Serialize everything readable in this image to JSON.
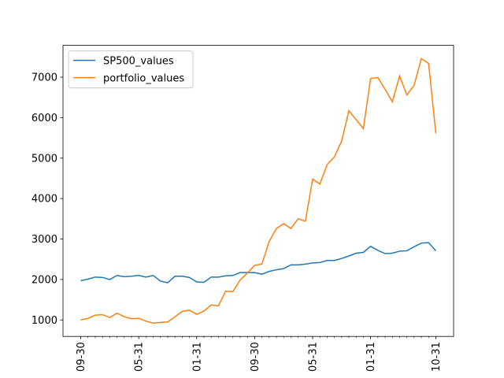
{
  "chart_data": {
    "type": "line",
    "categories": [
      "09-30",
      null,
      null,
      null,
      null,
      null,
      null,
      null,
      "05-31",
      null,
      null,
      null,
      null,
      null,
      null,
      null,
      "01-31",
      null,
      null,
      null,
      null,
      null,
      null,
      null,
      "09-30",
      null,
      null,
      null,
      null,
      null,
      null,
      null,
      "05-31",
      null,
      null,
      null,
      null,
      null,
      null,
      null,
      "01-31",
      null,
      null,
      null,
      null,
      null,
      null,
      null,
      null,
      "10-31"
    ],
    "series": [
      {
        "name": "SP500_values",
        "color": "#1f77b4",
        "values": [
          1970,
          2010,
          2060,
          2050,
          2000,
          2100,
          2070,
          2080,
          2100,
          2060,
          2100,
          1960,
          1920,
          2080,
          2080,
          2050,
          1940,
          1930,
          2060,
          2060,
          2090,
          2100,
          2170,
          2170,
          2170,
          2130,
          2200,
          2240,
          2270,
          2360,
          2360,
          2380,
          2410,
          2420,
          2470,
          2470,
          2520,
          2580,
          2650,
          2670,
          2820,
          2720,
          2640,
          2650,
          2700,
          2710,
          2810,
          2900,
          2910,
          2710
        ]
      },
      {
        "name": "portfolio_values",
        "color": "#ff7f0e",
        "values": [
          1000,
          1040,
          1120,
          1130,
          1060,
          1170,
          1080,
          1030,
          1040,
          970,
          920,
          940,
          950,
          1080,
          1210,
          1240,
          1140,
          1220,
          1370,
          1350,
          1710,
          1700,
          1990,
          2160,
          2350,
          2380,
          2940,
          3260,
          3380,
          3260,
          3500,
          3440,
          4480,
          4360,
          4840,
          5030,
          5420,
          6170,
          5950,
          5730,
          6970,
          6990,
          6700,
          6390,
          7030,
          6560,
          6800,
          7460,
          7340,
          5610
        ]
      }
    ],
    "ylim": [
      593,
      7787
    ],
    "yticks": [
      1000,
      2000,
      3000,
      4000,
      5000,
      6000,
      7000
    ],
    "legend": "upper left"
  }
}
